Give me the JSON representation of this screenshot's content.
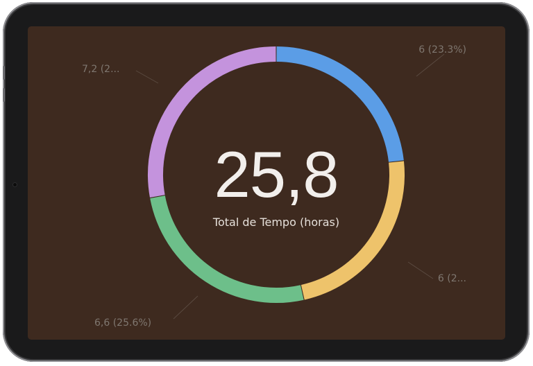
{
  "chart_data": {
    "type": "pie",
    "total": {
      "value": "25,8",
      "label": "Total de Tempo (horas)"
    },
    "slices": [
      {
        "value": 6,
        "label": "6 (23.3%)",
        "color": "#5b9de6"
      },
      {
        "value": 6,
        "label": "6 (2...",
        "color": "#eec36b"
      },
      {
        "value": 6.6,
        "label": "6,6 (25.6%)",
        "color": "#6dbf8a"
      },
      {
        "value": 7.2,
        "label": "7,2 (2...",
        "color": "#c493dd"
      }
    ]
  },
  "theme": {
    "screen_background": "#3e2a1f",
    "device_frame": "#1a1a1b"
  }
}
